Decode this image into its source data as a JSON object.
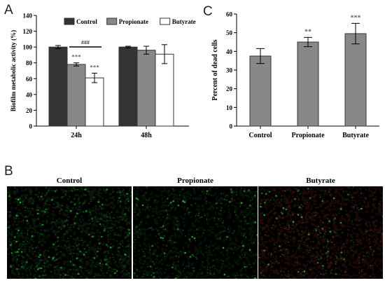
{
  "panels": {
    "A": "A",
    "B": "B",
    "C": "C"
  },
  "chart_data": [
    {
      "type": "bar",
      "categories": [
        "24h",
        "48h"
      ],
      "series": [
        {
          "name": "Control",
          "color": "#333333",
          "values": [
            100,
            100
          ],
          "errors": [
            2,
            1
          ]
        },
        {
          "name": "Propionate",
          "color": "#888888",
          "values": [
            78,
            96
          ],
          "errors": [
            2,
            5
          ]
        },
        {
          "name": "Butyrate",
          "color": "#ffffff",
          "values": [
            61,
            91
          ],
          "errors": [
            6,
            12
          ]
        }
      ],
      "ylabel": "Biofilm metabolic activity (%)",
      "ylim": [
        0,
        140
      ],
      "yticks": [
        "0",
        "20",
        "40",
        "60",
        "80",
        "100",
        "120",
        "140"
      ],
      "legend_position": "top",
      "annotations": [
        {
          "text": "***",
          "category": 0,
          "series": 1
        },
        {
          "text": "***",
          "category": 0,
          "series": 2
        },
        {
          "text": "###",
          "bracket": "24h Propionate to Butyrate"
        }
      ]
    },
    {
      "type": "bar",
      "categories": [
        "Control",
        "Propionate",
        "Butyrate"
      ],
      "values": [
        37.5,
        45,
        49.5
      ],
      "errors": [
        4,
        2.5,
        5.5
      ],
      "color": "#888888",
      "ylabel": "Percent of dead cells",
      "ylim": [
        0,
        60
      ],
      "yticks": [
        "0",
        "10",
        "20",
        "30",
        "40",
        "50",
        "60"
      ],
      "annotations": [
        "",
        "**",
        "***"
      ]
    }
  ],
  "micrographs": [
    {
      "label": "Control",
      "tint": "#0a1a0a",
      "dot_color": "#22ee33",
      "density": 520
    },
    {
      "label": "Propionate",
      "tint": "#071707",
      "dot_color": "#33ff44",
      "density": 300
    },
    {
      "label": "Butyrate",
      "tint": "#1c0c0a",
      "dot_color": "#44ee44",
      "density": 260
    }
  ]
}
